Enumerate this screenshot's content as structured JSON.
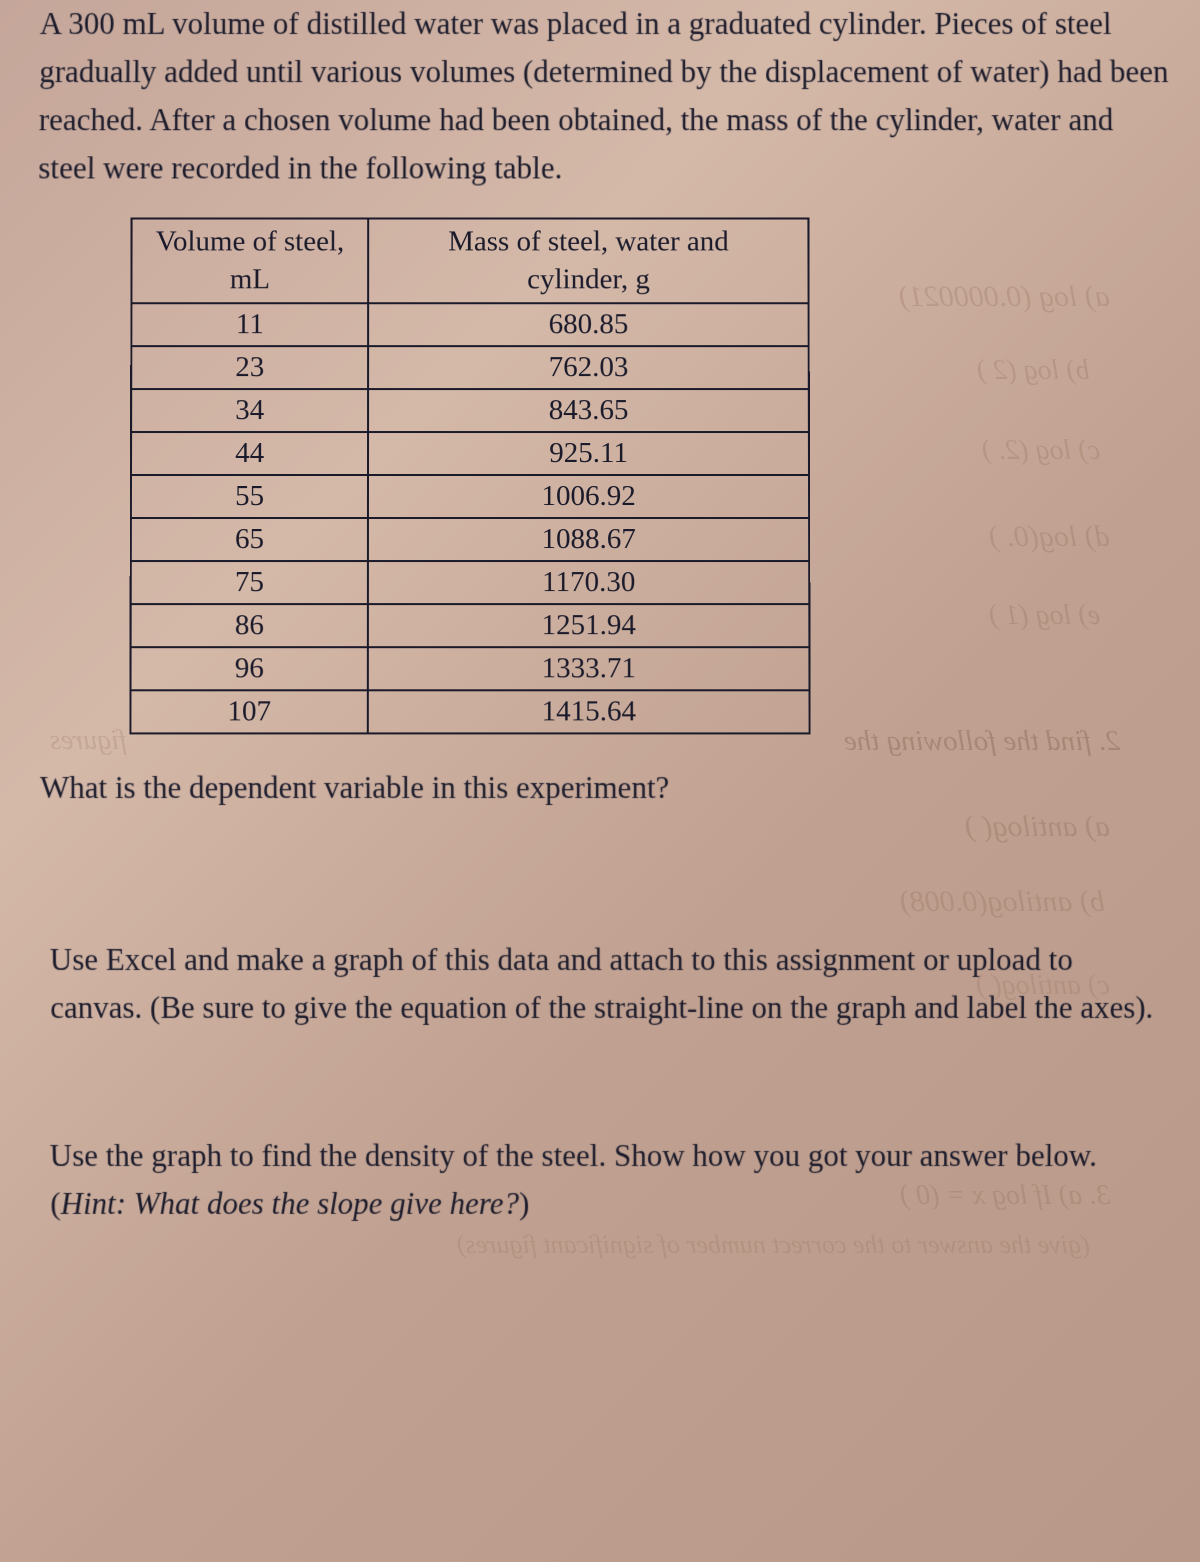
{
  "intro": "A 300 mL volume of distilled water was placed in a graduated cylinder. Pieces of steel gradually added until various volumes (determined by the displacement of water) had been reached.  After a chosen volume had been obtained, the mass of the cylinder, water and steel were recorded in the following table.",
  "table": {
    "header_volume_line1": "Volume of steel,",
    "header_volume_line2": "mL",
    "header_mass_line1": "Mass of steel, water and",
    "header_mass_line2": "cylinder, g",
    "rows": [
      {
        "volume": "11",
        "mass": "680.85"
      },
      {
        "volume": "23",
        "mass": "762.03"
      },
      {
        "volume": "34",
        "mass": "843.65"
      },
      {
        "volume": "44",
        "mass": "925.11"
      },
      {
        "volume": "55",
        "mass": "1006.92"
      },
      {
        "volume": "65",
        "mass": "1088.67"
      },
      {
        "volume": "75",
        "mass": "1170.30"
      },
      {
        "volume": "86",
        "mass": "1251.94"
      },
      {
        "volume": "96",
        "mass": "1333.71"
      },
      {
        "volume": "107",
        "mass": "1415.64"
      }
    ]
  },
  "question1": "What is the dependent variable in this experiment?",
  "question2": "Use Excel and make a graph of this data and attach to this assignment or upload to canvas.  (Be sure to give the equation of the straight-line on the graph and label the axes).",
  "question3_part1": "Use the graph to find the density of the steel.  Show how you got your answer below.  (",
  "question3_hint": "Hint: What does the slope give here?",
  "question3_part2": ")",
  "bleed": {
    "bt1": "a) log (0.000021)",
    "bt2": "b) log (2       )",
    "bt3": "c) log (2.       )",
    "bt4": "d) log(0.       )",
    "bt5": "e) log (1       )",
    "bt6": "2.  find the following    the",
    "bt7": "a) antilog(       )",
    "bt8": "b) antilog(0.008)",
    "bt9": "3.  a)  If  log x = (0           )          ",
    "bt10": "(give the answer to the correct number of significant figures)",
    "bt11": "figures",
    "bt12": "c) antilog(         )"
  }
}
